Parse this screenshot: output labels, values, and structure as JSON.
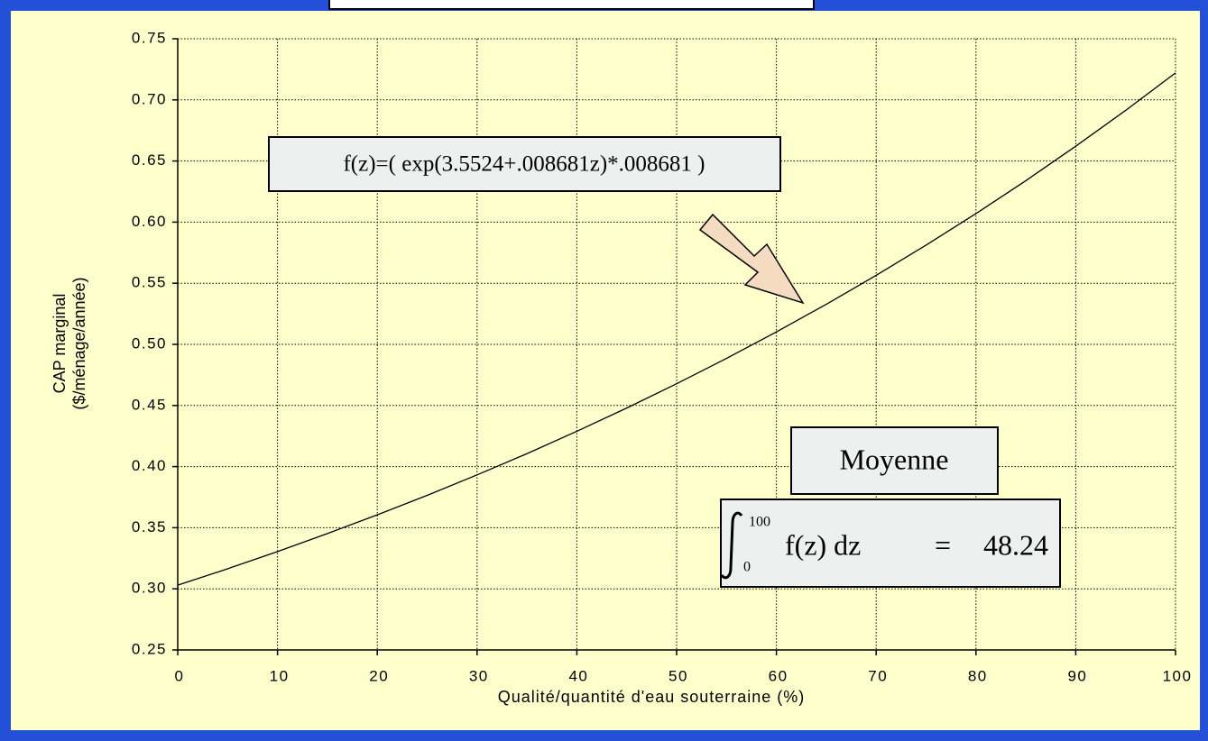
{
  "chart_data": {
    "type": "line",
    "y_label": [
      "CAP marginal",
      "($/ménage/année)"
    ],
    "x_label": "Qualité/quantité d'eau souterraine (%)",
    "x": [
      0,
      5,
      10,
      15,
      20,
      25,
      30,
      35,
      40,
      45,
      50,
      55,
      60,
      65,
      70,
      75,
      80,
      85,
      90,
      95,
      100
    ],
    "series": [
      {
        "color": "#000000",
        "values": [
          0.303,
          0.3164,
          0.3305,
          0.3452,
          0.3605,
          0.3765,
          0.3932,
          0.4106,
          0.4289,
          0.4479,
          0.4678,
          0.4885,
          0.5102,
          0.5328,
          0.5565,
          0.5812,
          0.607,
          0.6339,
          0.6621,
          0.6914,
          0.7221
        ]
      }
    ],
    "xlim": [
      0,
      100
    ],
    "xticks": [
      0,
      10,
      20,
      30,
      40,
      50,
      60,
      70,
      80,
      90,
      100
    ],
    "ylim": [
      0.25,
      0.75
    ],
    "yticks": [
      {
        "value": 0.25,
        "label": "0.25"
      },
      {
        "value": 0.3,
        "label": "0.30"
      },
      {
        "value": 0.35,
        "label": "0.35"
      },
      {
        "value": 0.4,
        "label": "0.40"
      },
      {
        "value": 0.45,
        "label": "0.45"
      },
      {
        "value": 0.5,
        "label": "0.50"
      },
      {
        "value": 0.55,
        "label": "0.55"
      },
      {
        "value": 0.6,
        "label": "0.60"
      },
      {
        "value": 0.65,
        "label": "0.65"
      },
      {
        "value": 0.7,
        "label": "0.70"
      },
      {
        "value": 0.75,
        "label": "0.75"
      }
    ],
    "grid": true,
    "formula": "f(z)=( exp(3.5524+.008681z)*.008681 )",
    "mean_label": "Moyenne",
    "integral": {
      "upper": "100",
      "lower": "0",
      "integrand": "f(z) dz",
      "equals": "=",
      "result": "48.24"
    }
  }
}
